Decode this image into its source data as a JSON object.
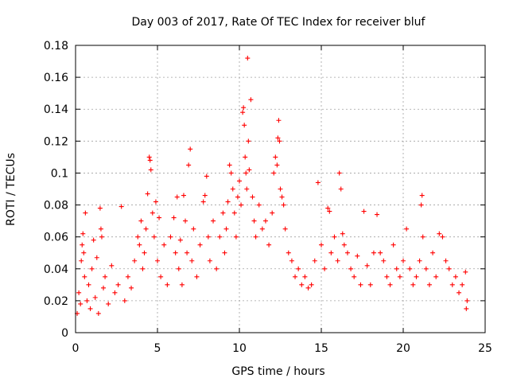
{
  "chart_data": {
    "type": "scatter",
    "title": "Day 003 of 2017, Rate Of TEC Index for receiver bluf",
    "xlabel": "GPS time / hours",
    "ylabel": "ROTI / TECUs",
    "xlim": [
      0,
      25
    ],
    "ylim": [
      0,
      0.18
    ],
    "xticks": [
      "0",
      "5",
      "10",
      "15",
      "20",
      "25"
    ],
    "yticks": [
      "0",
      "0.02",
      "0.04",
      "0.06",
      "0.08",
      "0.1",
      "0.12",
      "0.14",
      "0.16",
      "0.18"
    ],
    "grid": true,
    "marker": "+",
    "colors": {
      "points": "#ff0000",
      "grid": "#a0a0a0",
      "frame": "#000000"
    },
    "series": [
      {
        "points": [
          [
            0.1,
            0.012
          ],
          [
            0.2,
            0.025
          ],
          [
            0.3,
            0.018
          ],
          [
            0.35,
            0.045
          ],
          [
            0.4,
            0.055
          ],
          [
            0.45,
            0.062
          ],
          [
            0.5,
            0.05
          ],
          [
            0.55,
            0.035
          ],
          [
            0.6,
            0.075
          ],
          [
            0.7,
            0.02
          ],
          [
            0.8,
            0.03
          ],
          [
            0.9,
            0.015
          ],
          [
            1.0,
            0.04
          ],
          [
            1.1,
            0.058
          ],
          [
            1.2,
            0.022
          ],
          [
            1.3,
            0.047
          ],
          [
            1.4,
            0.012
          ],
          [
            1.5,
            0.078
          ],
          [
            1.55,
            0.065
          ],
          [
            1.6,
            0.06
          ],
          [
            1.7,
            0.028
          ],
          [
            1.8,
            0.035
          ],
          [
            2.0,
            0.018
          ],
          [
            2.2,
            0.042
          ],
          [
            2.4,
            0.025
          ],
          [
            2.6,
            0.03
          ],
          [
            2.8,
            0.079
          ],
          [
            3.0,
            0.02
          ],
          [
            3.2,
            0.035
          ],
          [
            3.4,
            0.028
          ],
          [
            3.6,
            0.045
          ],
          [
            3.8,
            0.06
          ],
          [
            3.9,
            0.055
          ],
          [
            4.0,
            0.07
          ],
          [
            4.1,
            0.04
          ],
          [
            4.2,
            0.05
          ],
          [
            4.3,
            0.065
          ],
          [
            4.4,
            0.087
          ],
          [
            4.5,
            0.11
          ],
          [
            4.55,
            0.108
          ],
          [
            4.6,
            0.102
          ],
          [
            4.7,
            0.075
          ],
          [
            4.8,
            0.06
          ],
          [
            4.9,
            0.082
          ],
          [
            5.0,
            0.045
          ],
          [
            5.1,
            0.072
          ],
          [
            5.2,
            0.035
          ],
          [
            5.4,
            0.055
          ],
          [
            5.6,
            0.03
          ],
          [
            5.8,
            0.06
          ],
          [
            6.0,
            0.072
          ],
          [
            6.1,
            0.05
          ],
          [
            6.2,
            0.085
          ],
          [
            6.3,
            0.04
          ],
          [
            6.4,
            0.058
          ],
          [
            6.5,
            0.03
          ],
          [
            6.6,
            0.086
          ],
          [
            6.7,
            0.07
          ],
          [
            6.8,
            0.05
          ],
          [
            6.9,
            0.105
          ],
          [
            7.0,
            0.115
          ],
          [
            7.1,
            0.045
          ],
          [
            7.2,
            0.065
          ],
          [
            7.4,
            0.035
          ],
          [
            7.6,
            0.055
          ],
          [
            7.8,
            0.082
          ],
          [
            7.9,
            0.086
          ],
          [
            8.0,
            0.098
          ],
          [
            8.1,
            0.06
          ],
          [
            8.2,
            0.045
          ],
          [
            8.4,
            0.07
          ],
          [
            8.6,
            0.04
          ],
          [
            8.8,
            0.06
          ],
          [
            9.0,
            0.075
          ],
          [
            9.1,
            0.05
          ],
          [
            9.2,
            0.065
          ],
          [
            9.3,
            0.082
          ],
          [
            9.4,
            0.105
          ],
          [
            9.5,
            0.1
          ],
          [
            9.6,
            0.09
          ],
          [
            9.7,
            0.075
          ],
          [
            9.8,
            0.06
          ],
          [
            9.9,
            0.085
          ],
          [
            10.0,
            0.095
          ],
          [
            10.1,
            0.08
          ],
          [
            10.2,
            0.138
          ],
          [
            10.25,
            0.141
          ],
          [
            10.3,
            0.13
          ],
          [
            10.35,
            0.11
          ],
          [
            10.4,
            0.1
          ],
          [
            10.45,
            0.09
          ],
          [
            10.5,
            0.172
          ],
          [
            10.55,
            0.12
          ],
          [
            10.6,
            0.102
          ],
          [
            10.7,
            0.146
          ],
          [
            10.8,
            0.085
          ],
          [
            10.9,
            0.07
          ],
          [
            11.0,
            0.06
          ],
          [
            11.2,
            0.08
          ],
          [
            11.4,
            0.065
          ],
          [
            11.6,
            0.07
          ],
          [
            11.8,
            0.055
          ],
          [
            12.0,
            0.075
          ],
          [
            12.1,
            0.1
          ],
          [
            12.2,
            0.11
          ],
          [
            12.3,
            0.105
          ],
          [
            12.35,
            0.122
          ],
          [
            12.4,
            0.133
          ],
          [
            12.45,
            0.12
          ],
          [
            12.5,
            0.09
          ],
          [
            12.6,
            0.085
          ],
          [
            12.7,
            0.08
          ],
          [
            12.8,
            0.065
          ],
          [
            13.0,
            0.05
          ],
          [
            13.2,
            0.045
          ],
          [
            13.4,
            0.035
          ],
          [
            13.6,
            0.04
          ],
          [
            13.8,
            0.03
          ],
          [
            14.0,
            0.035
          ],
          [
            14.2,
            0.028
          ],
          [
            14.4,
            0.03
          ],
          [
            14.6,
            0.045
          ],
          [
            14.8,
            0.094
          ],
          [
            15.0,
            0.055
          ],
          [
            15.2,
            0.04
          ],
          [
            15.4,
            0.078
          ],
          [
            15.5,
            0.076
          ],
          [
            15.6,
            0.05
          ],
          [
            15.8,
            0.06
          ],
          [
            16.0,
            0.045
          ],
          [
            16.1,
            0.1
          ],
          [
            16.2,
            0.09
          ],
          [
            16.3,
            0.062
          ],
          [
            16.4,
            0.055
          ],
          [
            16.6,
            0.05
          ],
          [
            16.8,
            0.04
          ],
          [
            17.0,
            0.035
          ],
          [
            17.2,
            0.048
          ],
          [
            17.4,
            0.03
          ],
          [
            17.6,
            0.076
          ],
          [
            17.8,
            0.042
          ],
          [
            18.0,
            0.03
          ],
          [
            18.2,
            0.05
          ],
          [
            18.4,
            0.074
          ],
          [
            18.6,
            0.05
          ],
          [
            18.8,
            0.045
          ],
          [
            19.0,
            0.035
          ],
          [
            19.2,
            0.03
          ],
          [
            19.4,
            0.055
          ],
          [
            19.6,
            0.04
          ],
          [
            19.8,
            0.035
          ],
          [
            20.0,
            0.045
          ],
          [
            20.2,
            0.065
          ],
          [
            20.4,
            0.04
          ],
          [
            20.6,
            0.03
          ],
          [
            20.8,
            0.035
          ],
          [
            21.0,
            0.045
          ],
          [
            21.1,
            0.08
          ],
          [
            21.15,
            0.086
          ],
          [
            21.2,
            0.06
          ],
          [
            21.4,
            0.04
          ],
          [
            21.6,
            0.03
          ],
          [
            21.8,
            0.05
          ],
          [
            22.0,
            0.035
          ],
          [
            22.2,
            0.062
          ],
          [
            22.4,
            0.06
          ],
          [
            22.6,
            0.045
          ],
          [
            22.8,
            0.04
          ],
          [
            23.0,
            0.03
          ],
          [
            23.2,
            0.035
          ],
          [
            23.4,
            0.025
          ],
          [
            23.6,
            0.03
          ],
          [
            23.8,
            0.038
          ],
          [
            23.85,
            0.015
          ],
          [
            23.9,
            0.02
          ]
        ]
      }
    ]
  }
}
